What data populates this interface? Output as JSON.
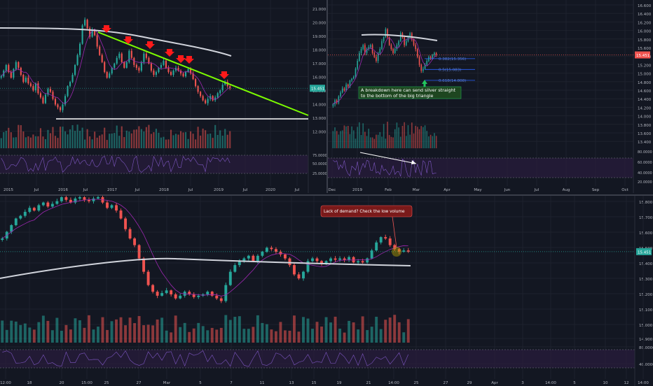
{
  "colors": {
    "bg": "#131722",
    "grid": "#1e222d",
    "up": "#26a69a",
    "down": "#ef5350",
    "ma200": "#d1d4dc",
    "ma50": "#9c27b0",
    "green_line": "#7cfc00",
    "white_line": "#ffffff",
    "arrow": "#ff1a1a",
    "price_tag": "#26a69a",
    "price_tag_tr": "#ef5350",
    "rsi_bg": "#2a1d3d",
    "axis_text": "#b2b5be"
  },
  "chart_data": [
    {
      "type": "candlestick",
      "panel": "main",
      "x_ticks": [
        "2015",
        "Jul",
        "2016",
        "Jul",
        "2017",
        "Jul",
        "2018",
        "Jul",
        "2019",
        "Jul",
        "2020",
        "Jul"
      ],
      "y_ticks": [
        "21.000",
        "20.000",
        "19.000",
        "18.000",
        "17.000",
        "16.000",
        "15.000",
        "14.000",
        "13.000",
        "12.000"
      ],
      "price_tag": "15.451",
      "rsi_ticks": [
        "75.0000",
        "50.0000",
        "25.0000"
      ],
      "ylim": [
        11.8,
        21.3
      ],
      "close": [
        16.3,
        16.7,
        17.1,
        16.6,
        16.2,
        16.8,
        17.3,
        16.9,
        16.4,
        15.9,
        16.2,
        15.8,
        15.6,
        15.3,
        15.8,
        15.1,
        14.8,
        14.4,
        15.0,
        15.4,
        15.2,
        14.7,
        14.3,
        14.1,
        13.9,
        14.3,
        14.9,
        15.6,
        15.9,
        16.4,
        17.1,
        17.8,
        18.6,
        19.9,
        20.3,
        19.7,
        19.1,
        19.6,
        19.2,
        18.4,
        17.8,
        17.3,
        16.6,
        16.2,
        16.5,
        16.9,
        17.2,
        17.6,
        17.9,
        17.3,
        16.9,
        17.3,
        18.1,
        17.6,
        17.1,
        16.9,
        16.7,
        17.3,
        17.9,
        17.6,
        17.2,
        16.7,
        16.4,
        16.6,
        16.9,
        17.1,
        17.4,
        16.9,
        16.6,
        16.4,
        16.7,
        16.9,
        16.7,
        16.5,
        16.3,
        16.6,
        16.8,
        16.5,
        16.1,
        15.6,
        15.2,
        14.9,
        14.6,
        14.4,
        14.7,
        14.9,
        14.6,
        14.8,
        15.1,
        15.3,
        15.7,
        15.9,
        15.6,
        15.45
      ]
    },
    {
      "type": "candlestick",
      "panel": "top-right",
      "x_ticks": [
        "Dec",
        "2019",
        "Feb",
        "Mar",
        "Apr",
        "May",
        "Jun",
        "Jul",
        "Aug",
        "Sep",
        "Oct"
      ],
      "y_ticks": [
        "16.600",
        "16.400",
        "16.200",
        "16.000",
        "15.800",
        "15.600",
        "15.400",
        "15.200",
        "15.000",
        "14.800",
        "14.600",
        "14.400",
        "14.200",
        "14.000",
        "13.800",
        "13.600",
        "13.400"
      ],
      "price_tag": "15.451",
      "rsi_ticks": [
        "80.0000",
        "60.0000",
        "40.0000",
        "20.0000"
      ],
      "ylim": [
        13.3,
        16.7
      ],
      "fib": [
        {
          "label": "0.382(15.356)",
          "value": 15.356
        },
        {
          "label": "0.5(15.083)",
          "value": 15.083
        },
        {
          "label": "0.618(14.808)",
          "value": 14.808
        }
      ],
      "close": [
        14.2,
        14.3,
        14.25,
        14.4,
        14.5,
        14.6,
        14.55,
        14.7,
        14.65,
        14.8,
        14.85,
        14.9,
        15.1,
        15.3,
        15.5,
        15.6,
        15.7,
        15.5,
        15.6,
        15.65,
        15.7,
        15.5,
        15.4,
        15.3,
        15.5,
        15.6,
        15.8,
        15.9,
        16.1,
        15.9,
        15.7,
        15.6,
        15.5,
        15.6,
        15.7,
        15.8,
        16.0,
        15.9,
        15.7,
        15.8,
        15.9,
        16.0,
        15.85,
        15.7,
        15.6,
        15.4,
        15.2,
        15.05,
        15.1,
        15.2,
        15.3,
        15.4,
        15.35,
        15.45,
        15.5,
        15.45
      ]
    },
    {
      "type": "candlestick",
      "panel": "bottom",
      "x_ticks": [
        "12:00",
        "18",
        "20",
        "15:00",
        "25",
        "27",
        "Mar",
        "5",
        "7",
        "11",
        "13",
        "15",
        "19",
        "21",
        "14:00",
        "25",
        "27",
        "29",
        "Apr",
        "3",
        "14:00",
        "5",
        "10",
        "12",
        "14:00"
      ],
      "y_ticks": [
        "15.800",
        "15.700",
        "15.600",
        "15.500",
        "15.400",
        "15.300",
        "15.200",
        "15.100",
        "15.000",
        "14.900",
        "80.0000",
        "40.0000"
      ],
      "price_tag": "15.451",
      "ylim": [
        14.82,
        15.86
      ],
      "close": [
        15.55,
        15.6,
        15.65,
        15.7,
        15.72,
        15.75,
        15.78,
        15.76,
        15.8,
        15.82,
        15.79,
        15.81,
        15.83,
        15.86,
        15.84,
        15.82,
        15.85,
        15.86,
        15.84,
        15.83,
        15.85,
        15.86,
        15.82,
        15.78,
        15.8,
        15.76,
        15.7,
        15.62,
        15.55,
        15.5,
        15.4,
        15.3,
        15.2,
        15.15,
        15.12,
        15.14,
        15.16,
        15.13,
        15.1,
        15.12,
        15.15,
        15.13,
        15.11,
        15.12,
        15.13,
        15.15,
        15.12,
        15.1,
        15.08,
        15.2,
        15.3,
        15.35,
        15.38,
        15.4,
        15.42,
        15.38,
        15.42,
        15.45,
        15.48,
        15.47,
        15.45,
        15.43,
        15.4,
        15.35,
        15.28,
        15.25,
        15.3,
        15.38,
        15.4,
        15.38,
        15.36,
        15.38,
        15.4,
        15.39,
        15.4,
        15.39,
        15.41,
        15.37,
        15.38,
        15.37,
        15.4,
        15.46,
        15.52,
        15.56,
        15.55,
        15.5,
        15.47,
        15.45,
        15.46,
        15.45
      ]
    }
  ],
  "annotations": {
    "main_text": "",
    "tr_text_line1": "A breakdown here can send silver straight",
    "tr_text_line2": "to the bottom of the big triangle",
    "bot_callout": "Lack of demand? Check the low volume"
  }
}
